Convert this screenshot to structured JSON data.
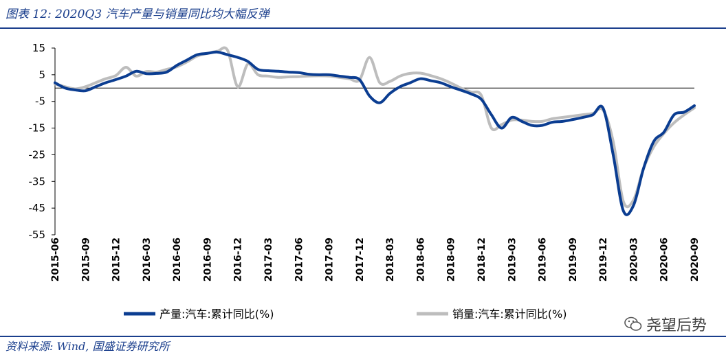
{
  "figure_title": "图表 12:  2020Q3 汽车产量与销量同比均大幅反弹",
  "source_note": "资料来源:  Wind,  国盛证券研究所",
  "watermark_text": "尧望后势",
  "colors": {
    "production": "#0b3d91",
    "sales": "#bdbdbd",
    "accent": "#1a3e8c"
  },
  "chart_data": {
    "type": "line",
    "title": "",
    "xlabel": "",
    "ylabel": "",
    "ylim": [
      -55,
      15
    ],
    "yticks": [
      15,
      5,
      -5,
      -15,
      -25,
      -35,
      -45,
      -55
    ],
    "x_labels": [
      "2015-06",
      "2015-09",
      "2015-12",
      "2016-03",
      "2016-06",
      "2016-09",
      "2016-12",
      "2017-03",
      "2017-06",
      "2017-09",
      "2017-12",
      "2018-03",
      "2018-06",
      "2018-09",
      "2018-12",
      "2019-03",
      "2019-06",
      "2019-09",
      "2019-12",
      "2020-03",
      "2020-06",
      "2020-09"
    ],
    "x": [
      "2015-06",
      "2015-07",
      "2015-08",
      "2015-09",
      "2015-10",
      "2015-11",
      "2015-12",
      "2016-01",
      "2016-02",
      "2016-03",
      "2016-04",
      "2016-05",
      "2016-06",
      "2016-07",
      "2016-08",
      "2016-09",
      "2016-10",
      "2016-11",
      "2016-12",
      "2017-01",
      "2017-02",
      "2017-03",
      "2017-04",
      "2017-05",
      "2017-06",
      "2017-07",
      "2017-08",
      "2017-09",
      "2017-10",
      "2017-11",
      "2017-12",
      "2018-01",
      "2018-02",
      "2018-03",
      "2018-04",
      "2018-05",
      "2018-06",
      "2018-07",
      "2018-08",
      "2018-09",
      "2018-10",
      "2018-11",
      "2018-12",
      "2019-01",
      "2019-02",
      "2019-03",
      "2019-04",
      "2019-05",
      "2019-06",
      "2019-07",
      "2019-08",
      "2019-09",
      "2019-10",
      "2019-11",
      "2019-12",
      "2020-01",
      "2020-02",
      "2020-03",
      "2020-04",
      "2020-05",
      "2020-06",
      "2020-07",
      "2020-08",
      "2020-09"
    ],
    "series": [
      {
        "name": "产量:汽车:累计同比(%)",
        "color": "#0b3d91",
        "values": [
          2.0,
          0.0,
          -0.7,
          -1.0,
          0.5,
          2.0,
          3.2,
          4.5,
          6.3,
          5.4,
          5.5,
          6.0,
          8.5,
          10.5,
          12.5,
          13.0,
          13.5,
          12.5,
          11.5,
          10.0,
          7.0,
          6.5,
          6.3,
          6.0,
          5.8,
          5.2,
          5.0,
          5.0,
          4.5,
          4.0,
          3.2,
          -3.0,
          -5.5,
          -2.0,
          0.5,
          2.0,
          3.5,
          2.8,
          2.0,
          0.5,
          -0.8,
          -2.2,
          -4.2,
          -10.0,
          -15.0,
          -11.0,
          -12.5,
          -14.0,
          -14.0,
          -12.8,
          -12.5,
          -11.8,
          -11.0,
          -10.0,
          -7.5,
          -25.0,
          -46.0,
          -44.0,
          -30.0,
          -20.0,
          -16.5,
          -10.0,
          -9.0,
          -6.6
        ]
      },
      {
        "name": "销量:汽车:累计同比(%)",
        "color": "#bdbdbd",
        "values": [
          1.5,
          0.5,
          -0.3,
          0.5,
          2.0,
          3.5,
          4.7,
          7.8,
          4.5,
          6.2,
          6.0,
          7.0,
          8.0,
          9.8,
          12.0,
          13.0,
          13.8,
          14.2,
          0.5,
          9.0,
          5.0,
          4.5,
          4.0,
          4.2,
          4.3,
          4.5,
          4.6,
          4.5,
          4.0,
          3.5,
          3.0,
          11.5,
          2.0,
          2.5,
          4.5,
          5.5,
          5.6,
          4.7,
          3.5,
          1.9,
          0.0,
          -1.5,
          -2.7,
          -15.0,
          -13.7,
          -12.0,
          -12.0,
          -12.5,
          -12.5,
          -11.5,
          -11.0,
          -10.5,
          -10.0,
          -9.5,
          -8.2,
          -20.0,
          -42.5,
          -42.0,
          -30.0,
          -22.0,
          -17.0,
          -13.0,
          -10.0,
          -7.4
        ]
      }
    ],
    "legend": {
      "production_label": "产量:汽车:累计同比(%)",
      "sales_label": "销量:汽车:累计同比(%)",
      "placement": "bottom"
    }
  }
}
